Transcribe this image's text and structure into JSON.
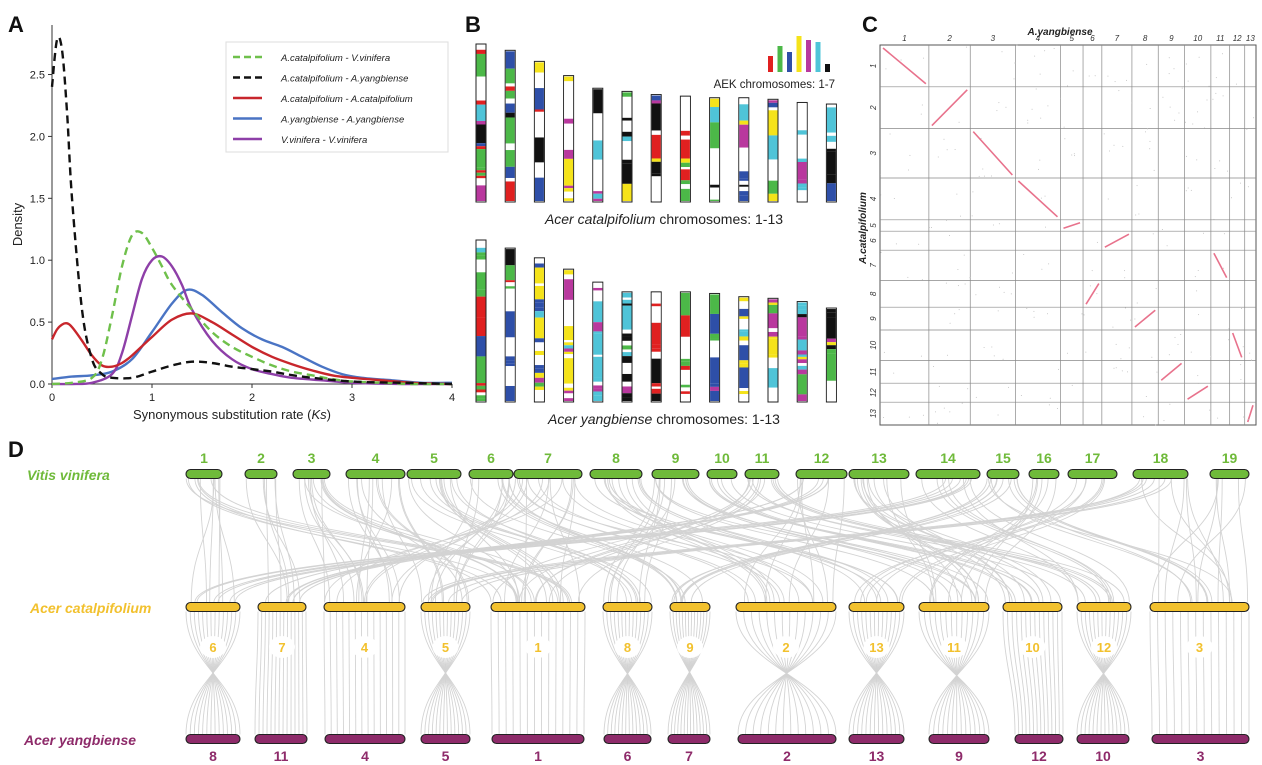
{
  "panels": {
    "a": "A",
    "b": "B",
    "c": "C",
    "d": "D"
  },
  "chart_data": [
    {
      "type": "line",
      "panel": "A",
      "xlabel_main": "Synonymous substitution rate (",
      "xlabel_italic": "Ks",
      "xlabel_end": ")",
      "ylabel": "Density",
      "xlim": [
        0,
        4
      ],
      "ylim": [
        0,
        2.9
      ],
      "xticks": [
        "0",
        "1",
        "2",
        "3",
        "4"
      ],
      "yticks": [
        "0.0",
        "0.5",
        "1.0",
        "1.5",
        "2.0",
        "2.5"
      ],
      "legend_position": "top-right",
      "series": [
        {
          "name": "A.catalpifolium - V.vinifera",
          "color": "#6fc04b",
          "dash": true,
          "x": [
            0.0,
            0.2,
            0.4,
            0.5,
            0.6,
            0.7,
            0.8,
            0.9,
            1.0,
            1.1,
            1.2,
            1.4,
            1.6,
            1.8,
            2.0,
            2.2,
            2.4,
            2.6,
            2.8,
            3.0,
            3.3,
            3.6,
            4.0
          ],
          "y": [
            0.0,
            0.01,
            0.05,
            0.2,
            0.55,
            0.95,
            1.2,
            1.22,
            1.1,
            0.95,
            0.8,
            0.6,
            0.42,
            0.3,
            0.22,
            0.15,
            0.1,
            0.07,
            0.04,
            0.02,
            0.01,
            0.0,
            0.0
          ]
        },
        {
          "name": "A.catalpifolium - A.yangbiense",
          "color": "#111111",
          "dash": true,
          "x": [
            0.0,
            0.05,
            0.1,
            0.15,
            0.2,
            0.3,
            0.4,
            0.5,
            0.6,
            0.8,
            1.0,
            1.2,
            1.4,
            1.6,
            1.8,
            2.0,
            2.2,
            2.5,
            3.0,
            3.5,
            4.0
          ],
          "y": [
            2.4,
            2.78,
            2.7,
            2.2,
            1.5,
            0.6,
            0.2,
            0.08,
            0.05,
            0.05,
            0.1,
            0.15,
            0.18,
            0.17,
            0.14,
            0.12,
            0.1,
            0.06,
            0.02,
            0.01,
            0.0
          ]
        },
        {
          "name": "A.catalpifolium - A.catalpifolium",
          "color": "#c8262c",
          "dash": false,
          "x": [
            0.0,
            0.05,
            0.1,
            0.15,
            0.2,
            0.3,
            0.4,
            0.5,
            0.6,
            0.7,
            0.8,
            1.0,
            1.2,
            1.4,
            1.6,
            1.8,
            2.0,
            2.2,
            2.4,
            2.6,
            2.8,
            3.0,
            3.3,
            3.6,
            4.0
          ],
          "y": [
            0.36,
            0.44,
            0.48,
            0.49,
            0.46,
            0.35,
            0.23,
            0.15,
            0.14,
            0.17,
            0.23,
            0.38,
            0.52,
            0.57,
            0.5,
            0.4,
            0.3,
            0.22,
            0.16,
            0.11,
            0.07,
            0.05,
            0.03,
            0.01,
            0.0
          ]
        },
        {
          "name": "A.yangbiense - A.yangbiense",
          "color": "#4a74c4",
          "dash": false,
          "x": [
            0.0,
            0.2,
            0.4,
            0.6,
            0.8,
            1.0,
            1.2,
            1.35,
            1.5,
            1.7,
            1.9,
            2.1,
            2.3,
            2.5,
            2.7,
            2.9,
            3.1,
            3.4,
            3.7,
            4.0
          ],
          "y": [
            0.04,
            0.06,
            0.07,
            0.1,
            0.2,
            0.42,
            0.65,
            0.76,
            0.72,
            0.58,
            0.45,
            0.36,
            0.3,
            0.22,
            0.14,
            0.08,
            0.05,
            0.03,
            0.01,
            0.01
          ]
        },
        {
          "name": "V.vinifera - V.vinifera",
          "color": "#8e3fa8",
          "dash": false,
          "x": [
            0.0,
            0.2,
            0.4,
            0.6,
            0.7,
            0.8,
            0.9,
            1.0,
            1.1,
            1.2,
            1.3,
            1.4,
            1.6,
            1.8,
            2.0,
            2.2,
            2.4,
            2.7,
            3.0,
            3.5,
            4.0
          ],
          "y": [
            0.0,
            0.0,
            0.01,
            0.08,
            0.25,
            0.55,
            0.85,
            1.0,
            1.03,
            0.95,
            0.8,
            0.6,
            0.35,
            0.2,
            0.12,
            0.08,
            0.05,
            0.03,
            0.01,
            0.0,
            0.0
          ]
        }
      ]
    },
    {
      "type": "karyotype",
      "panel": "B",
      "legend_label": "AEK chromosomes: 1-7",
      "aek_colors": [
        "#e02020",
        "#4cb848",
        "#2e4fa8",
        "#f5e31a",
        "#b9389e",
        "#4fc4d8",
        "#111111"
      ],
      "top_caption_species": "Acer catalpifolium",
      "top_caption_rest": " chromosomes: 1-13",
      "bottom_caption_species": "Acer yangbiense",
      "bottom_caption_rest": " chromosomes: 1-13",
      "top_relative_lengths": [
        1.0,
        0.96,
        0.89,
        0.8,
        0.72,
        0.7,
        0.68,
        0.67,
        0.66,
        0.66,
        0.65,
        0.63,
        0.62
      ],
      "bottom_relative_lengths": [
        1.0,
        0.95,
        0.89,
        0.82,
        0.74,
        0.68,
        0.68,
        0.68,
        0.67,
        0.65,
        0.64,
        0.62,
        0.58
      ]
    },
    {
      "type": "dotplot",
      "panel": "C",
      "xlabel": "A.yangbiense",
      "ylabel": "A.catalpifolium",
      "x_chromosomes": [
        "1",
        "2",
        "3",
        "4",
        "5",
        "6",
        "7",
        "8",
        "9",
        "10",
        "11",
        "12",
        "13"
      ],
      "y_chromosomes": [
        "1",
        "2",
        "3",
        "4",
        "5",
        "6",
        "7",
        "8",
        "9",
        "10",
        "11",
        "12",
        "13"
      ],
      "dot_color": "#e8728c"
    },
    {
      "type": "synteny",
      "panel": "D",
      "genomes": [
        {
          "name": "Vitis vinifera",
          "color": "#6fba3a",
          "chromosomes": [
            "1",
            "2",
            "3",
            "4",
            "5",
            "6",
            "7",
            "8",
            "9",
            "10",
            "11",
            "12",
            "13",
            "14",
            "15",
            "16",
            "17",
            "18",
            "19"
          ]
        },
        {
          "name": "Acer catalpifolium",
          "color": "#f2c12e",
          "chromosomes": [
            "6",
            "7",
            "4",
            "5",
            "1",
            "8",
            "9",
            "2",
            "13",
            "11",
            "10",
            "12",
            "3"
          ]
        },
        {
          "name": "Acer yangbiense",
          "color": "#8e2b6a",
          "chromosomes": [
            "8",
            "11",
            "4",
            "5",
            "1",
            "6",
            "7",
            "2",
            "13",
            "9",
            "12",
            "10",
            "3"
          ]
        }
      ]
    }
  ]
}
